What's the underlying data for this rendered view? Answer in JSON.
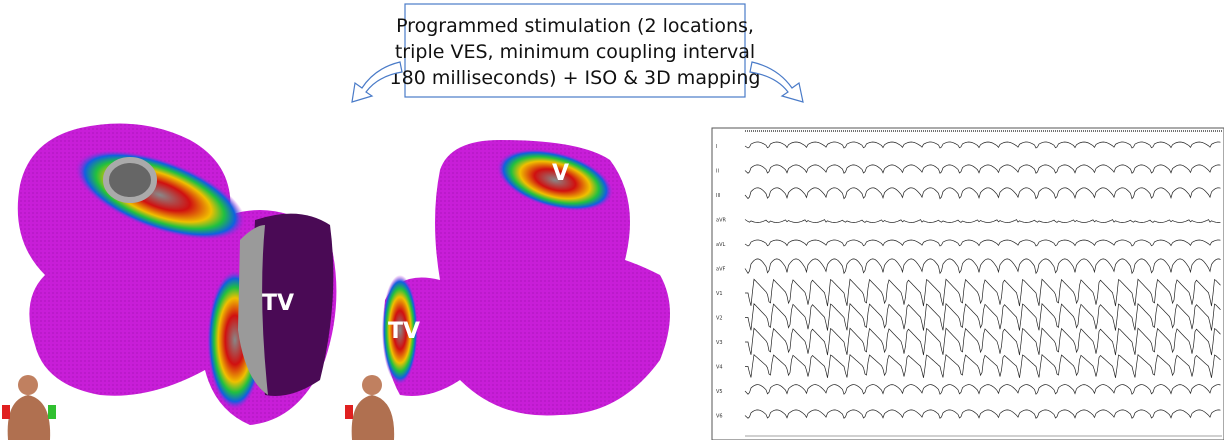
{
  "caption": {
    "lines": [
      "Programmed stimulation (2 locations,",
      "triple VES, minimum coupling interval",
      "180 milliseconds) + ISO & 3D mapping"
    ]
  },
  "maps": [
    {
      "labels": [
        "TV"
      ]
    },
    {
      "labels": [
        "TV",
        "V"
      ]
    }
  ],
  "ecg": {
    "leads": [
      "I",
      "II",
      "III",
      "aVR",
      "aVL",
      "aVF",
      "V1",
      "V2",
      "V3",
      "V4",
      "V5",
      "V6"
    ]
  }
}
